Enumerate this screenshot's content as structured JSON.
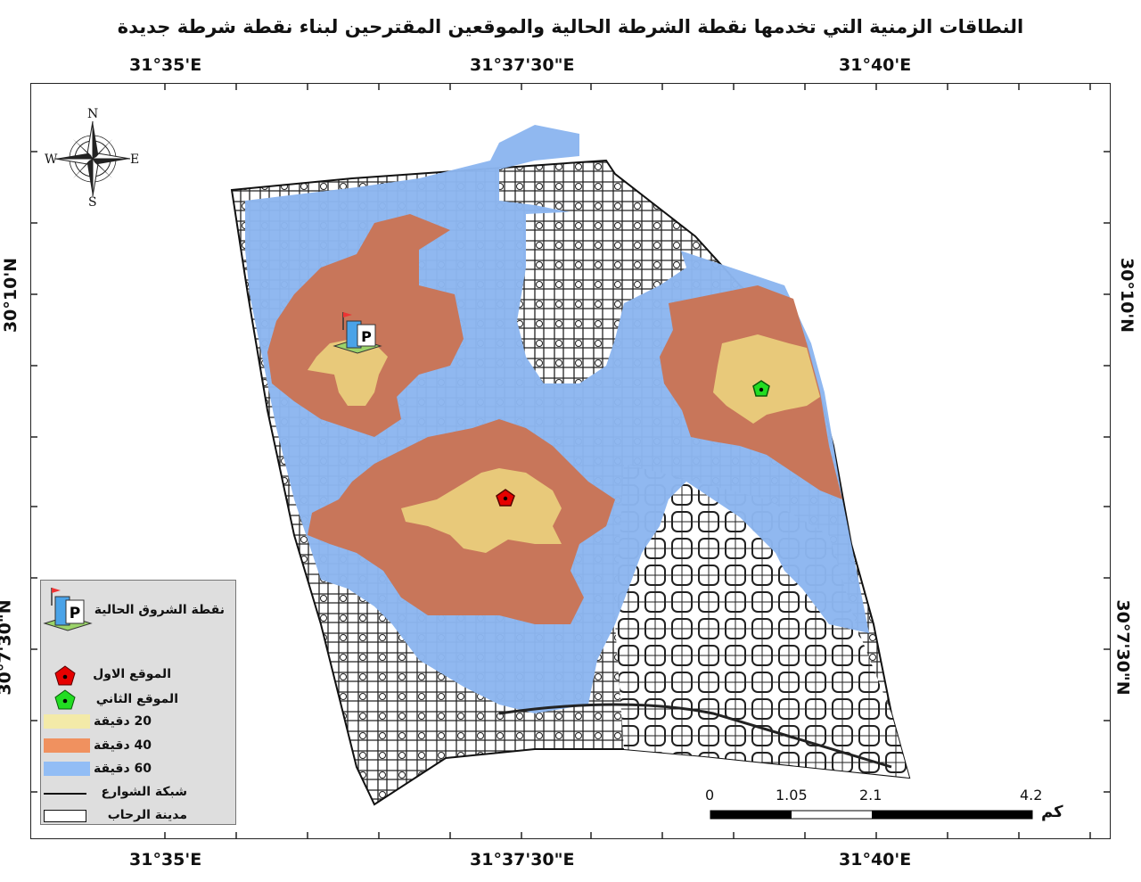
{
  "title": "النطاقات الزمنية التي تخدمها نقطة الشرطة الحالية والموقعين المقترحين لبناء نقطة شرطة جديدة",
  "axes": {
    "top": [
      "31°35'E",
      "31°37'30\"E",
      "31°40'E"
    ],
    "bottom": [
      "31°35'E",
      "31°37'30\"E",
      "31°40'E"
    ],
    "left": [
      "30°10'N",
      "30°7'30\"N"
    ],
    "right": [
      "30°10'N",
      "30°7'30\"N"
    ]
  },
  "compass": {
    "n": "N",
    "s": "S",
    "e": "E",
    "w": "W"
  },
  "legend": {
    "current_point": "نقطة الشروق الحالية",
    "site1": "الموقع الاول",
    "site2": "الموقع الثاني",
    "zone20": "20 دقيقة",
    "zone40": "40 دقيقة",
    "zone60": "60 دقيقة",
    "roads": "شبكة الشوارع",
    "city": "مدينة الرحاب"
  },
  "scale": {
    "ticks": [
      "0",
      "1.05",
      "2.1",
      "4.2"
    ],
    "unit": "كم"
  },
  "colors": {
    "zone20": "#e8c97a",
    "zone40": "#c8765a",
    "zone60": "#8cb6ef",
    "site1": "#e60000",
    "site2": "#22dd22",
    "legend20": "#f3eaa8",
    "legend40": "#f0915f",
    "legend60": "#92bdf5"
  }
}
